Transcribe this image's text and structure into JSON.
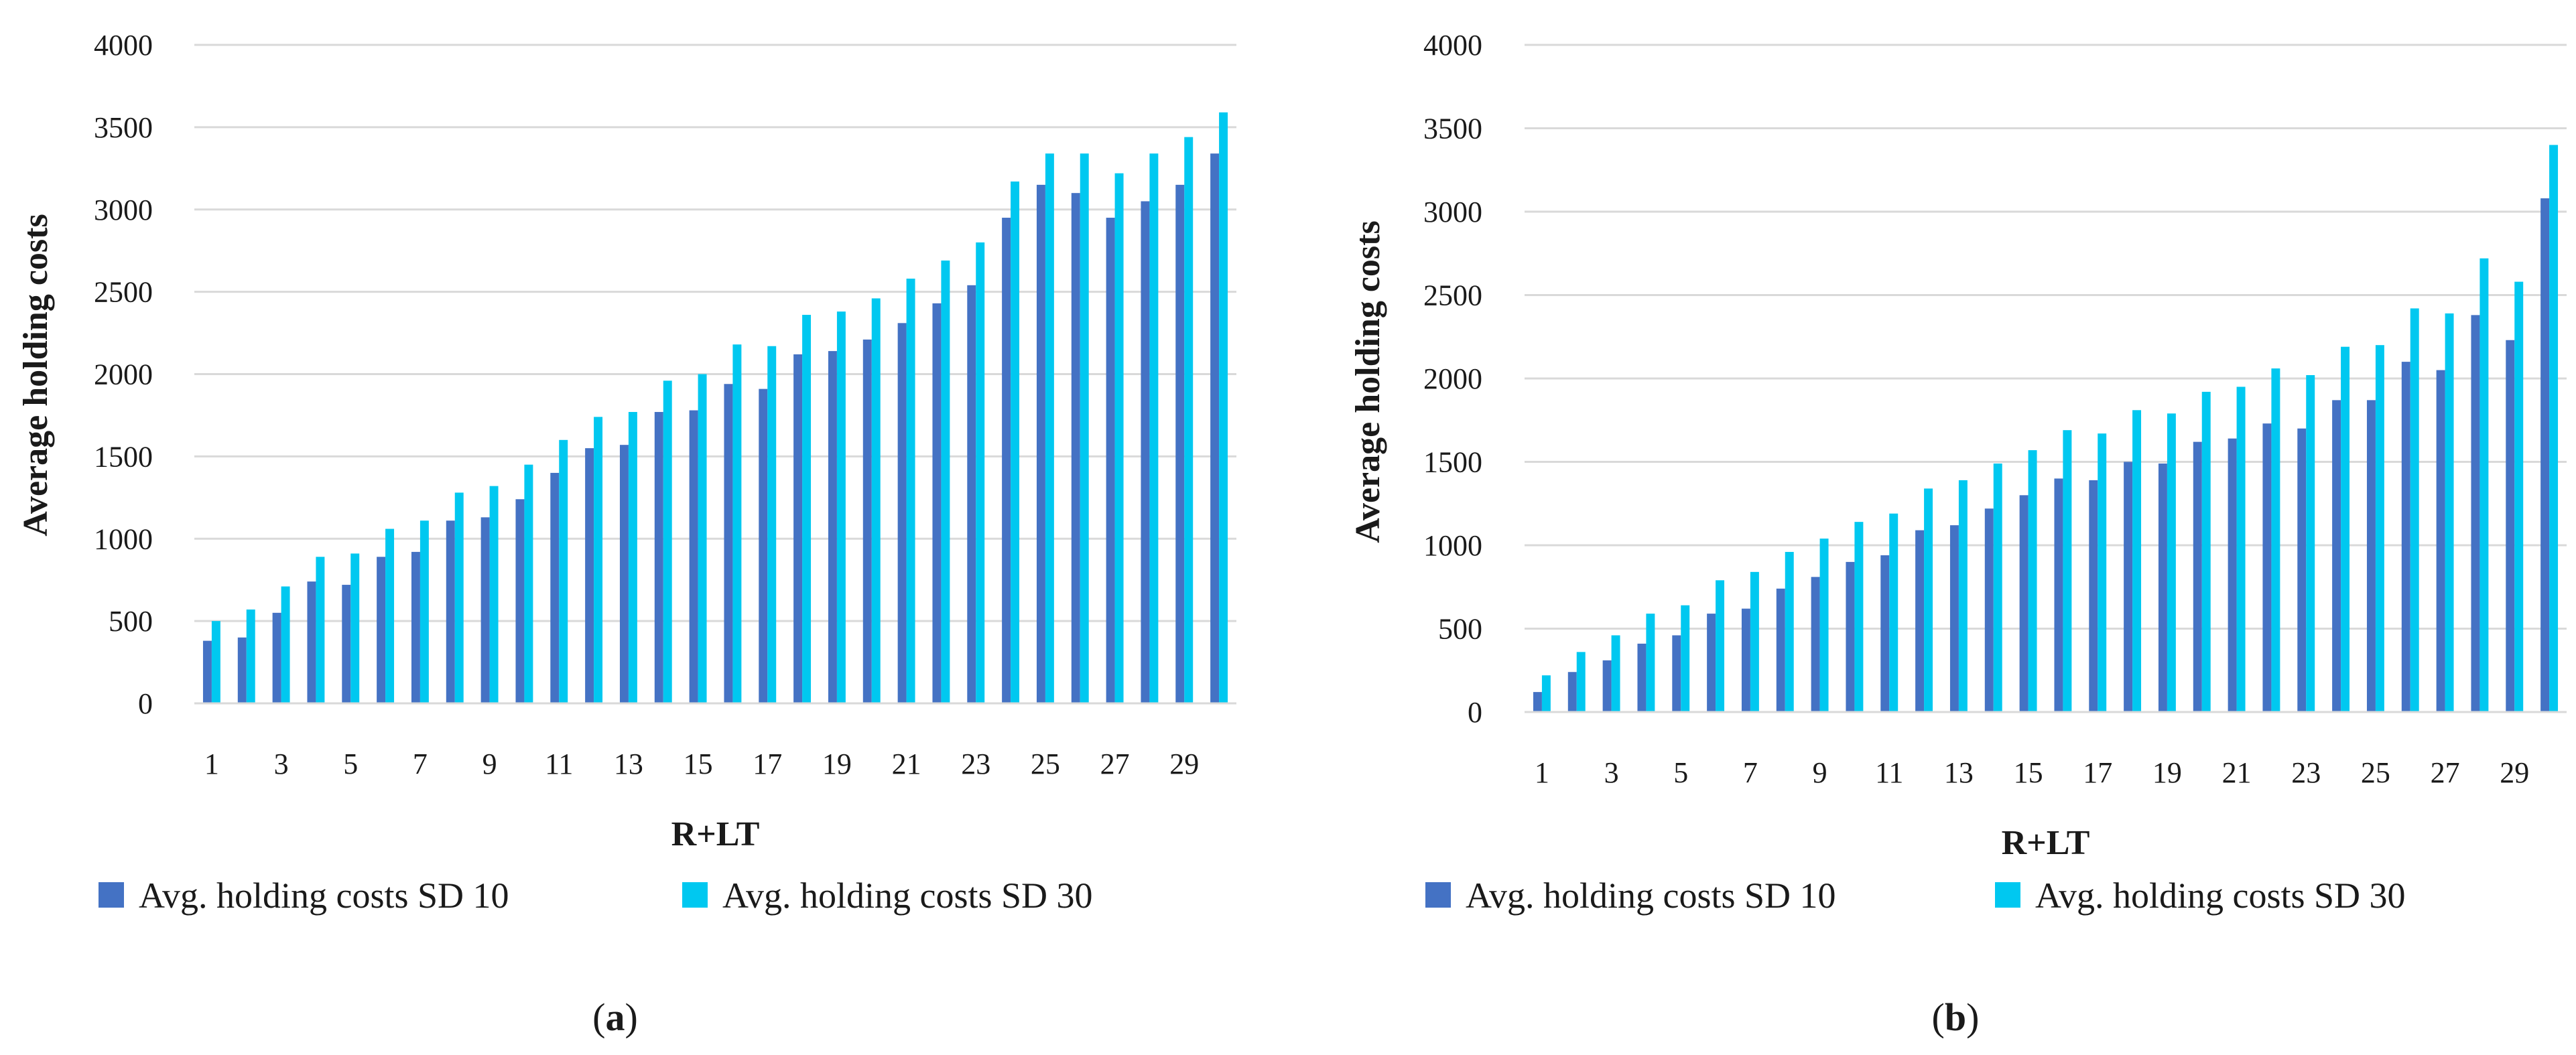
{
  "chart_data": [
    {
      "type": "bar",
      "panel_label": "(a)",
      "panel_letter": "a",
      "xlabel": "R+LT",
      "ylabel": "Average holding costs",
      "ylim": [
        0,
        4000
      ],
      "yticks": [
        0,
        500,
        1000,
        1500,
        2000,
        2500,
        3000,
        3500,
        4000
      ],
      "categories": [
        1,
        2,
        3,
        4,
        5,
        6,
        7,
        8,
        9,
        10,
        11,
        12,
        13,
        14,
        15,
        16,
        17,
        18,
        19,
        20,
        21,
        22,
        23,
        24,
        25,
        26,
        27,
        28,
        29,
        30
      ],
      "xtick_labels": [
        "1",
        "3",
        "5",
        "7",
        "9",
        "11",
        "13",
        "15",
        "17",
        "19",
        "21",
        "23",
        "25",
        "27",
        "29"
      ],
      "grid": true,
      "legend_position": "bottom",
      "series": [
        {
          "name": "Avg. holding costs SD 10",
          "color": "#4472C4",
          "values": [
            380,
            400,
            550,
            740,
            720,
            890,
            920,
            1110,
            1130,
            1240,
            1400,
            1550,
            1570,
            1770,
            1780,
            1940,
            1910,
            2120,
            2140,
            2210,
            2310,
            2430,
            2540,
            2950,
            3150,
            3100,
            2950,
            3050,
            3150,
            3340
          ]
        },
        {
          "name": "Avg. holding costs SD 30",
          "color": "#00C8F0",
          "values": [
            500,
            570,
            710,
            890,
            910,
            1060,
            1110,
            1280,
            1320,
            1450,
            1600,
            1740,
            1770,
            1960,
            2000,
            2180,
            2170,
            2360,
            2380,
            2460,
            2580,
            2690,
            2800,
            3170,
            3340,
            3340,
            3220,
            3340,
            3440,
            3590
          ]
        }
      ]
    },
    {
      "type": "bar",
      "panel_label": "(b)",
      "panel_letter": "b",
      "xlabel": "R+LT",
      "ylabel": "Average holding costs",
      "ylim": [
        0,
        4000
      ],
      "yticks": [
        0,
        500,
        1000,
        1500,
        2000,
        2500,
        3000,
        3500,
        4000
      ],
      "categories": [
        1,
        2,
        3,
        4,
        5,
        6,
        7,
        8,
        9,
        10,
        11,
        12,
        13,
        14,
        15,
        16,
        17,
        18,
        19,
        20,
        21,
        22,
        23,
        24,
        25,
        26,
        27,
        28,
        29,
        30
      ],
      "xtick_labels": [
        "1",
        "3",
        "5",
        "7",
        "9",
        "11",
        "13",
        "15",
        "17",
        "19",
        "21",
        "23",
        "25",
        "27",
        "29"
      ],
      "grid": true,
      "legend_position": "bottom",
      "series": [
        {
          "name": "Avg. holding costs SD 10",
          "color": "#4472C4",
          "values": [
            120,
            240,
            310,
            410,
            460,
            590,
            620,
            740,
            810,
            900,
            940,
            1090,
            1120,
            1220,
            1300,
            1400,
            1390,
            1500,
            1490,
            1620,
            1640,
            1730,
            1700,
            1870,
            1870,
            2100,
            2050,
            2380,
            2230,
            3080
          ]
        },
        {
          "name": "Avg. holding costs SD 30",
          "color": "#00C8F0",
          "values": [
            220,
            360,
            460,
            590,
            640,
            790,
            840,
            960,
            1040,
            1140,
            1190,
            1340,
            1390,
            1490,
            1570,
            1690,
            1670,
            1810,
            1790,
            1920,
            1950,
            2060,
            2020,
            2190,
            2200,
            2420,
            2390,
            2720,
            2580,
            3400
          ]
        }
      ]
    }
  ]
}
